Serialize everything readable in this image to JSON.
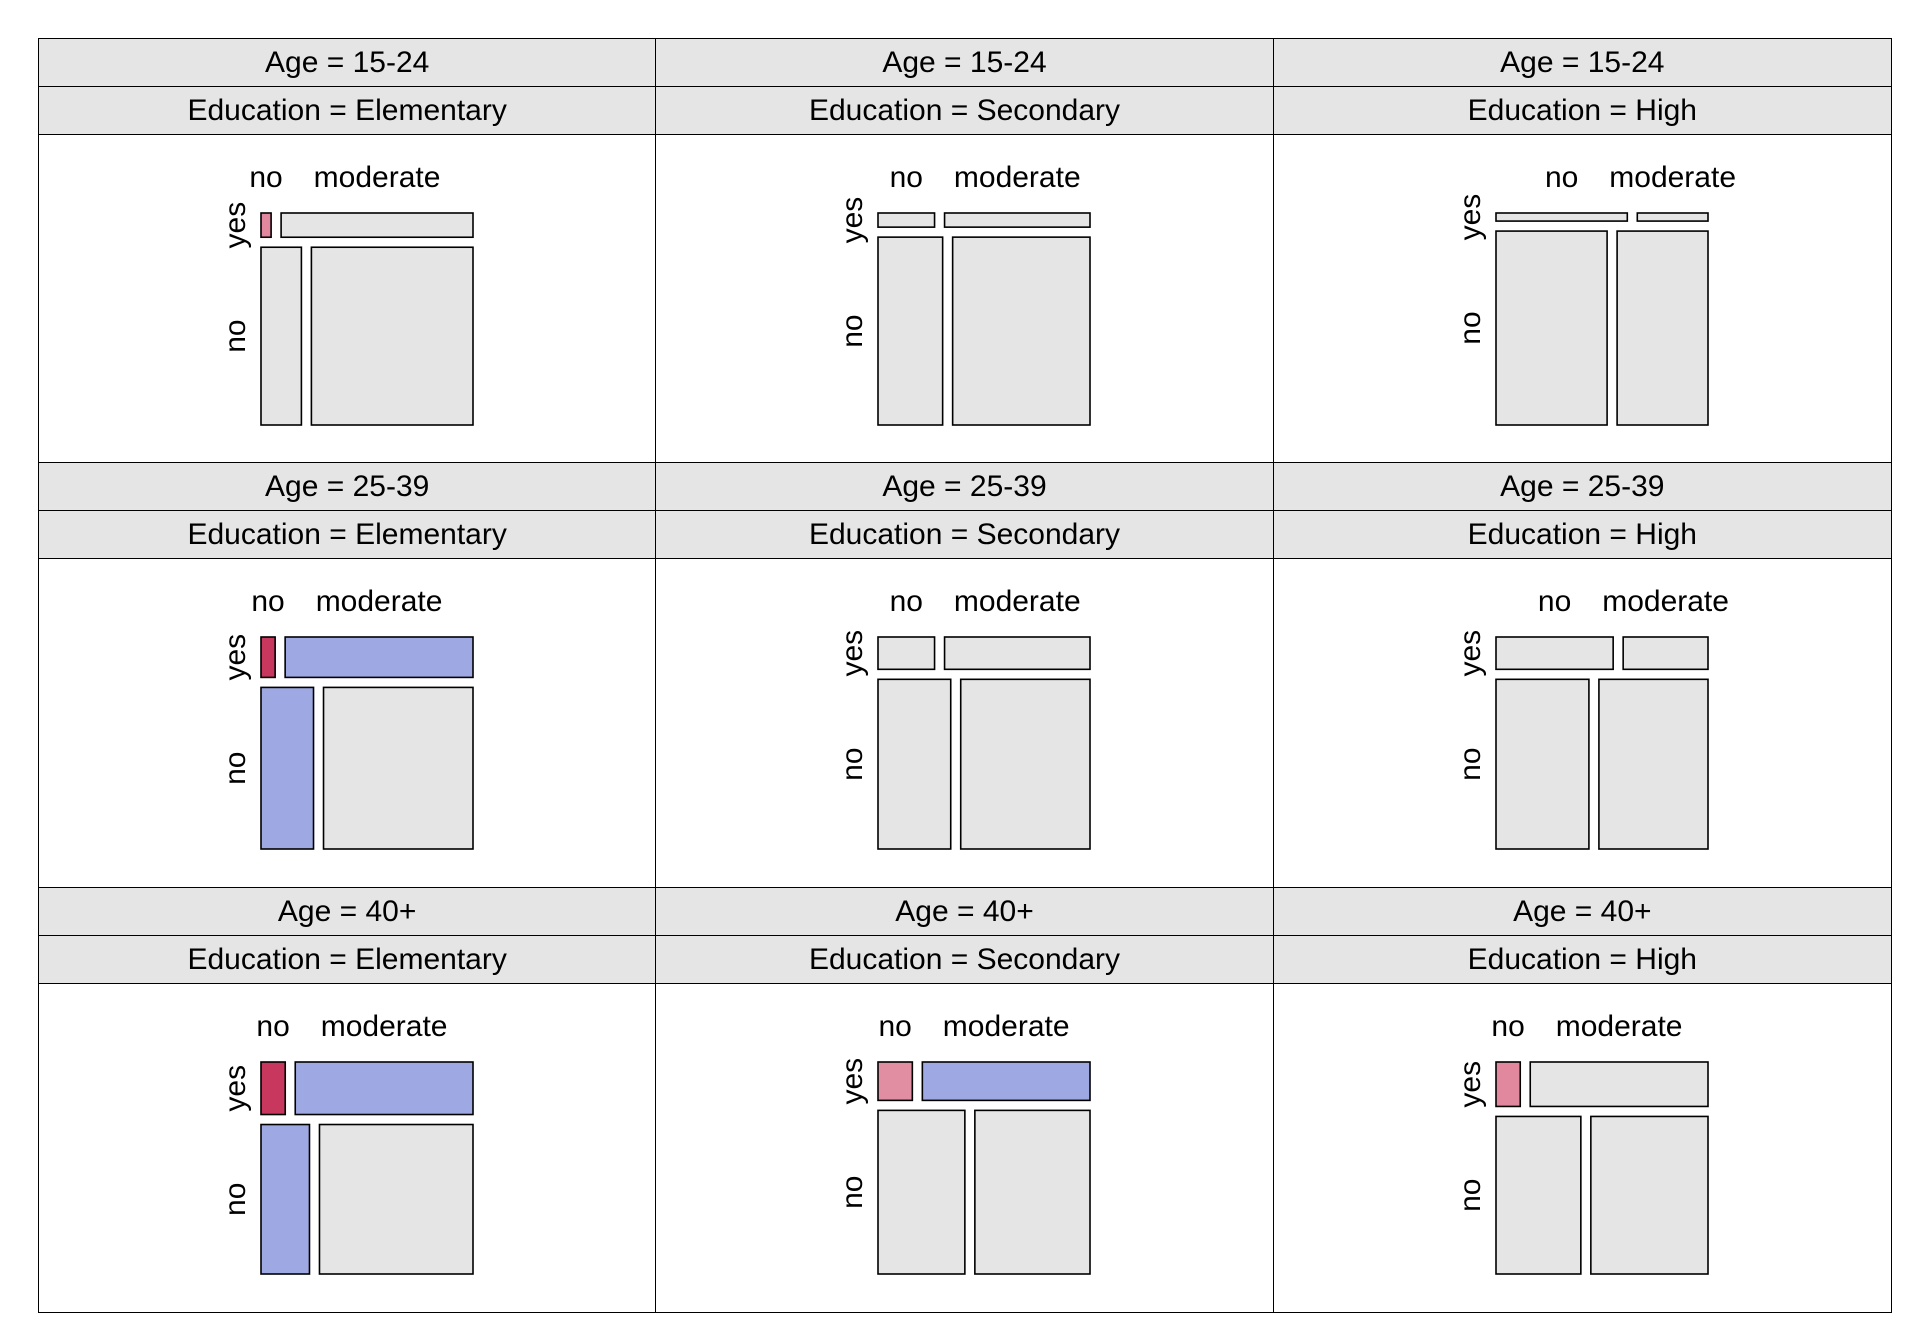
{
  "chart_data": {
    "type": "mosaic",
    "row_variable_levels": [
      "yes",
      "no"
    ],
    "column_variable_levels": [
      "no",
      "moderate"
    ],
    "colors": {
      "neutral": "#e5e5e5",
      "dark_red": "#c8385e",
      "medium_red": "#e28ea2",
      "light_red": "#e2889e",
      "blue": "#9ea8e2"
    },
    "panels": [
      {
        "age_label": "Age = 15-24",
        "education_label": "Education = Elementary",
        "row_yes_share": 0.12,
        "col_no_share_in_yes": 0.05,
        "col_no_share_in_no": 0.2,
        "fill": {
          "yes_no": "light_red",
          "yes_moderate": "neutral",
          "no_no": "neutral",
          "no_moderate": "neutral"
        }
      },
      {
        "age_label": "Age = 15-24",
        "education_label": "Education = Secondary",
        "row_yes_share": 0.07,
        "col_no_share_in_yes": 0.28,
        "col_no_share_in_no": 0.32,
        "fill": {
          "yes_no": "neutral",
          "yes_moderate": "neutral",
          "no_no": "neutral",
          "no_moderate": "neutral"
        }
      },
      {
        "age_label": "Age = 15-24",
        "education_label": "Education = High",
        "row_yes_share": 0.04,
        "col_no_share_in_yes": 0.65,
        "col_no_share_in_no": 0.55,
        "fill": {
          "yes_no": "neutral",
          "yes_moderate": "neutral",
          "no_no": "neutral",
          "no_moderate": "neutral"
        }
      },
      {
        "age_label": "Age = 25-39",
        "education_label": "Education = Elementary",
        "row_yes_share": 0.2,
        "col_no_share_in_yes": 0.07,
        "col_no_share_in_no": 0.26,
        "fill": {
          "yes_no": "dark_red",
          "yes_moderate": "blue",
          "no_no": "blue",
          "no_moderate": "neutral"
        }
      },
      {
        "age_label": "Age = 25-39",
        "education_label": "Education = Secondary",
        "row_yes_share": 0.16,
        "col_no_share_in_yes": 0.28,
        "col_no_share_in_no": 0.36,
        "fill": {
          "yes_no": "neutral",
          "yes_moderate": "neutral",
          "no_no": "neutral",
          "no_moderate": "neutral"
        }
      },
      {
        "age_label": "Age = 25-39",
        "education_label": "Education = High",
        "row_yes_share": 0.16,
        "col_no_share_in_yes": 0.58,
        "col_no_share_in_no": 0.46,
        "fill": {
          "yes_no": "neutral",
          "yes_moderate": "neutral",
          "no_no": "neutral",
          "no_moderate": "neutral"
        }
      },
      {
        "age_label": "Age = 40+",
        "education_label": "Education = Elementary",
        "row_yes_share": 0.26,
        "col_no_share_in_yes": 0.12,
        "col_no_share_in_no": 0.24,
        "fill": {
          "yes_no": "dark_red",
          "yes_moderate": "blue",
          "no_no": "blue",
          "no_moderate": "neutral"
        }
      },
      {
        "age_label": "Age = 40+",
        "education_label": "Education = Secondary",
        "row_yes_share": 0.19,
        "col_no_share_in_yes": 0.17,
        "col_no_share_in_no": 0.43,
        "fill": {
          "yes_no": "medium_red",
          "yes_moderate": "blue",
          "no_no": "neutral",
          "no_moderate": "neutral"
        }
      },
      {
        "age_label": "Age = 40+",
        "education_label": "Education = High",
        "row_yes_share": 0.22,
        "col_no_share_in_yes": 0.12,
        "col_no_share_in_no": 0.42,
        "fill": {
          "yes_no": "light_red",
          "yes_moderate": "neutral",
          "no_no": "neutral",
          "no_moderate": "neutral"
        }
      }
    ]
  }
}
